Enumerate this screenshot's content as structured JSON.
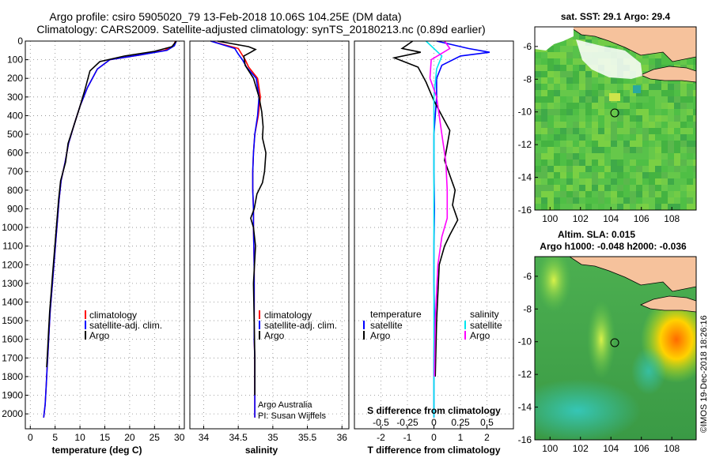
{
  "title_line1": "Argo profile: csiro 5905020_79 13-Feb-2018 10.06S 104.25E (DM data)",
  "title_line2": "Climatology: CARS2009. Satellite-adjusted climatology: synTS_20180213.nc (0.89d earlier)",
  "credit": "Argo Australia",
  "pi": "PI: Susan Wijffels",
  "watermark": "©IMOS 19-Dec-2018 18:26:16",
  "colors": {
    "climatology": "#ff0000",
    "satellite": "#0000ff",
    "argo": "#000000",
    "sat_salinity": "#00e5ee",
    "argo_salinity": "#ff00ff"
  },
  "chart_data": [
    {
      "type": "line",
      "id": "temperature",
      "xlabel": "temperature (deg C)",
      "ylabel": "",
      "xlim": [
        -1,
        31
      ],
      "ylim": [
        2080,
        0
      ],
      "xticks": [
        0,
        5,
        10,
        15,
        20,
        25,
        30
      ],
      "yticks": [
        0,
        100,
        200,
        300,
        400,
        500,
        600,
        700,
        800,
        900,
        1000,
        1100,
        1200,
        1300,
        1400,
        1500,
        1600,
        1700,
        1800,
        1900,
        2000
      ],
      "legend": [
        "climatology",
        "satellite-adj. clim.",
        "Argo"
      ],
      "series": [
        {
          "name": "climatology",
          "x": [
            29.2,
            28.8,
            27,
            22,
            16,
            13.5,
            11.5,
            10,
            8.8,
            7.7,
            7,
            6.2,
            5.8,
            5.5,
            5.2,
            4.9,
            4.6,
            4.3,
            4.0,
            3.8,
            3.6,
            3.4,
            3.2,
            3.0,
            2.7
          ],
          "y": [
            0,
            25,
            50,
            75,
            100,
            150,
            250,
            350,
            450,
            550,
            650,
            750,
            850,
            950,
            1050,
            1150,
            1250,
            1350,
            1450,
            1550,
            1650,
            1750,
            1850,
            1950,
            2020
          ]
        },
        {
          "name": "satellite-adj. clim.",
          "x": [
            29.4,
            29.0,
            27.5,
            22,
            16,
            13.5,
            11.5,
            10,
            8.8,
            7.7,
            7,
            6.2,
            5.8,
            5.5,
            5.2,
            4.9,
            4.6,
            4.3,
            4.0,
            3.8,
            3.6,
            3.4,
            3.2,
            3.0,
            2.7
          ],
          "y": [
            0,
            25,
            50,
            75,
            100,
            150,
            250,
            350,
            450,
            550,
            650,
            750,
            850,
            950,
            1050,
            1150,
            1250,
            1350,
            1450,
            1550,
            1650,
            1750,
            1850,
            1950,
            2020
          ]
        },
        {
          "name": "Argo",
          "x": [
            29.4,
            28.5,
            25,
            19,
            14,
            12,
            11,
            10,
            8.8,
            7.6,
            7.1,
            6.1,
            5.7,
            5.4,
            5.1,
            4.8,
            4.5,
            4.2,
            3.9,
            3.7,
            3.5,
            3.3
          ],
          "y": [
            0,
            30,
            55,
            80,
            110,
            160,
            260,
            350,
            450,
            550,
            650,
            750,
            850,
            950,
            1050,
            1150,
            1250,
            1350,
            1450,
            1550,
            1650,
            1750
          ]
        }
      ]
    },
    {
      "type": "line",
      "id": "salinity",
      "xlabel": "salinity",
      "ylabel": "",
      "xlim": [
        33.8,
        36.1
      ],
      "ylim": [
        2080,
        0
      ],
      "xticks": [
        34,
        34.5,
        35,
        35.5,
        36
      ],
      "xtick_labels": [
        "34",
        "34.5",
        "35",
        "35.5",
        "36"
      ],
      "legend": [
        "climatology",
        "satellite-adj. clim.",
        "Argo"
      ],
      "series": [
        {
          "name": "climatology",
          "x": [
            34.1,
            34.5,
            34.55,
            34.6,
            34.65,
            34.78,
            34.82,
            34.79,
            34.74,
            34.72,
            34.71,
            34.71,
            34.72,
            34.72,
            34.73,
            34.73,
            34.73,
            34.74,
            34.74,
            34.74,
            34.74
          ],
          "y": [
            0,
            40,
            70,
            100,
            140,
            200,
            300,
            400,
            500,
            600,
            700,
            800,
            900,
            1000,
            1200,
            1400,
            1600,
            1700,
            1800,
            1900,
            2020
          ]
        },
        {
          "name": "satellite-adj. clim.",
          "x": [
            34.1,
            34.45,
            34.5,
            34.56,
            34.62,
            34.76,
            34.8,
            34.78,
            34.74,
            34.72,
            34.71,
            34.71,
            34.72,
            34.72,
            34.73,
            34.73,
            34.73,
            34.74,
            34.74,
            34.74,
            34.74
          ],
          "y": [
            0,
            40,
            70,
            100,
            140,
            200,
            300,
            400,
            500,
            600,
            700,
            800,
            900,
            1000,
            1200,
            1400,
            1600,
            1700,
            1800,
            1900,
            2020
          ]
        },
        {
          "name": "Argo",
          "x": [
            34.2,
            34.65,
            34.75,
            34.68,
            34.58,
            34.6,
            34.72,
            34.8,
            34.84,
            34.86,
            34.85,
            34.9,
            34.88,
            34.85,
            34.77,
            34.73,
            34.68,
            34.72,
            34.75,
            34.72,
            34.73,
            34.74,
            34.74
          ],
          "y": [
            0,
            30,
            45,
            60,
            80,
            130,
            200,
            300,
            380,
            460,
            520,
            600,
            700,
            760,
            820,
            900,
            950,
            1000,
            1100,
            1300,
            1500,
            1700,
            1900
          ]
        }
      ]
    },
    {
      "type": "line",
      "id": "difference",
      "xlabel": "T difference from climatology",
      "secondary_xlabel": "S difference from climatology",
      "ylabel": "",
      "xlim": [
        -3,
        3
      ],
      "ylim": [
        2080,
        0
      ],
      "xticks": [
        -2,
        -1,
        0,
        1,
        2
      ],
      "secondary_xticks": [
        -0.5,
        -0.25,
        0,
        0.25,
        0.5
      ],
      "secondary_xtick_labels": [
        "-0.5",
        "-0.25",
        "0",
        "0.25",
        "0.5"
      ],
      "legend_temperature": [
        "temperature",
        "satellite",
        "Argo"
      ],
      "legend_salinity": [
        "salinity",
        "satellite",
        "Argo"
      ],
      "series": [
        {
          "name": "satellite",
          "x": [
            0.1,
            1.3,
            2.1,
            1.0,
            0.3,
            0.1,
            0.1,
            0.05,
            0.0,
            0.0,
            0.02,
            0.0,
            0.0,
            0.02,
            0.0,
            0.0,
            0.0,
            0.0,
            0.0
          ],
          "y": [
            0,
            40,
            60,
            80,
            130,
            200,
            300,
            400,
            500,
            700,
            900,
            1100,
            1300,
            1500,
            1700,
            1900,
            2000,
            2020,
            2020
          ]
        },
        {
          "name": "Argo",
          "x": [
            -0.8,
            -1.2,
            -0.5,
            -1.5,
            -0.6,
            -0.3,
            0.0,
            0.3,
            0.6,
            0.5,
            0.4,
            0.6,
            0.8,
            0.7,
            0.9,
            0.6,
            0.4,
            0.2,
            0.1,
            0.05
          ],
          "y": [
            0,
            40,
            60,
            90,
            140,
            220,
            320,
            400,
            480,
            560,
            640,
            720,
            800,
            880,
            960,
            1040,
            1100,
            1200,
            1500,
            1800
          ]
        },
        {
          "name": "satellite salinity",
          "x": [
            -0.3,
            0.0,
            0.3,
            0.1,
            0.0,
            0.0,
            0.0,
            0.0,
            0.0,
            0.0,
            0.0,
            0.0
          ],
          "y": [
            0,
            40,
            80,
            150,
            300,
            500,
            800,
            1100,
            1400,
            1700,
            1900,
            2020
          ]
        },
        {
          "name": "Argo salinity",
          "x": [
            0.4,
            0.6,
            -0.1,
            -0.15,
            0.1,
            0.2,
            0.3,
            0.45,
            0.5,
            0.5,
            0.3,
            0.15,
            0.05,
            0.02
          ],
          "y": [
            0,
            40,
            100,
            200,
            300,
            400,
            500,
            650,
            800,
            950,
            1050,
            1200,
            1500,
            1800
          ]
        }
      ]
    },
    {
      "type": "heatmap",
      "id": "sst_map",
      "title": "sat. SST: 29.1 Argo: 29.4",
      "xlim": [
        99,
        109.6
      ],
      "ylim": [
        -16,
        -4.8
      ],
      "xticks": [
        100,
        102,
        104,
        106,
        108
      ],
      "yticks": [
        -6,
        -8,
        -10,
        -12,
        -14,
        -16
      ],
      "marker": {
        "lon": 104.25,
        "lat": -10.06
      }
    },
    {
      "type": "heatmap",
      "id": "sla_map",
      "title": "Altim. SLA: 0.015",
      "subtitle": "Argo h1000: -0.048 h2000: -0.036",
      "xlim": [
        99,
        109.6
      ],
      "ylim": [
        -16,
        -4.8
      ],
      "xticks": [
        100,
        102,
        104,
        106,
        108
      ],
      "yticks": [
        -6,
        -8,
        -10,
        -12,
        -14,
        -16
      ],
      "marker": {
        "lon": 104.25,
        "lat": -10.06
      }
    }
  ]
}
